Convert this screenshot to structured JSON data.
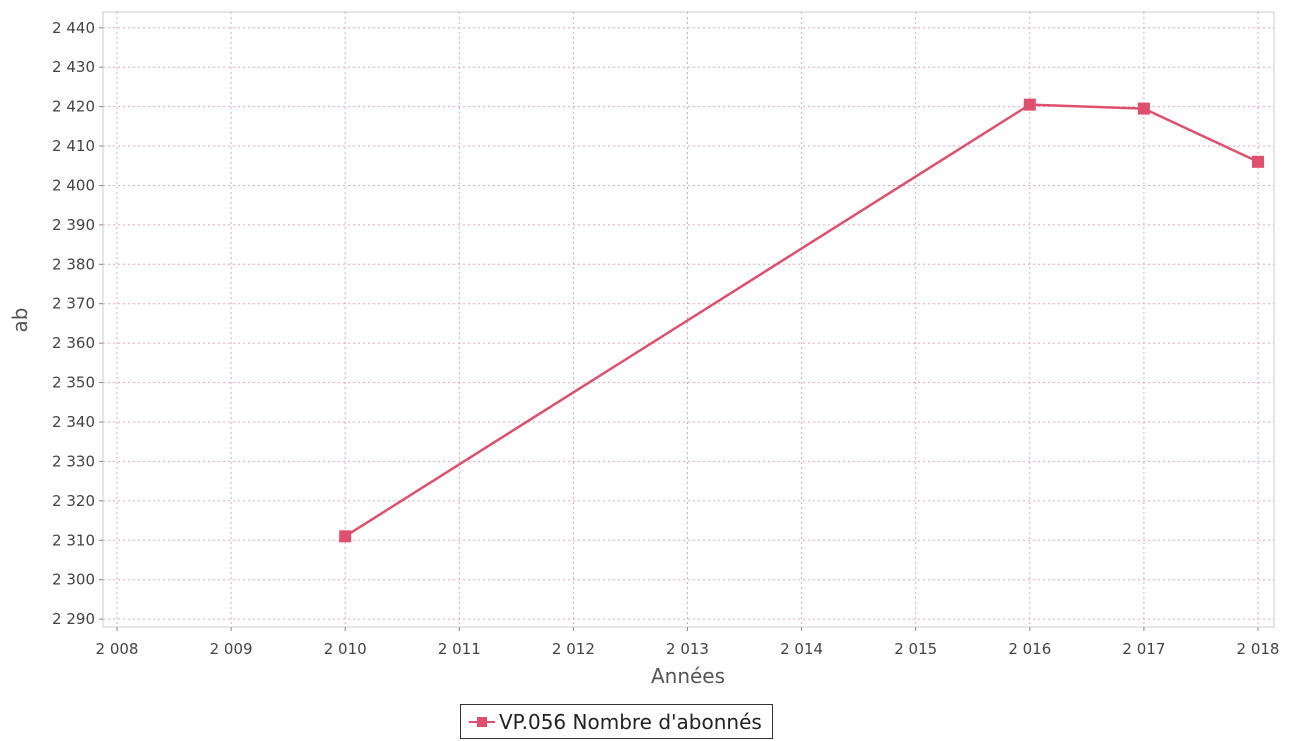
{
  "chart_data": {
    "type": "line",
    "title": "",
    "xlabel": "Années",
    "ylabel": "ab",
    "xlim": [
      2008,
      2018
    ],
    "ylim": [
      2288,
      2444
    ],
    "x_ticks": [
      2008,
      2009,
      2010,
      2011,
      2012,
      2013,
      2014,
      2015,
      2016,
      2017,
      2018
    ],
    "x_tick_labels": [
      "2 008",
      "2 009",
      "2 010",
      "2 011",
      "2 012",
      "2 013",
      "2 014",
      "2 015",
      "2 016",
      "2 017",
      "2 018"
    ],
    "y_ticks": [
      2290,
      2300,
      2310,
      2320,
      2330,
      2340,
      2350,
      2360,
      2370,
      2380,
      2390,
      2400,
      2410,
      2420,
      2430,
      2440
    ],
    "y_tick_labels": [
      "2 290",
      "2 300",
      "2 310",
      "2 320",
      "2 330",
      "2 340",
      "2 350",
      "2 360",
      "2 370",
      "2 380",
      "2 390",
      "2 400",
      "2 410",
      "2 420",
      "2 430",
      "2 440"
    ],
    "grid": true,
    "legend_position": "bottom-center",
    "series": [
      {
        "name": "VP.056 Nombre d'abonnés",
        "color": "#e0506e",
        "x": [
          2010,
          2016,
          2017,
          2018
        ],
        "y": [
          2311,
          2420.5,
          2419.5,
          2406
        ]
      }
    ]
  }
}
